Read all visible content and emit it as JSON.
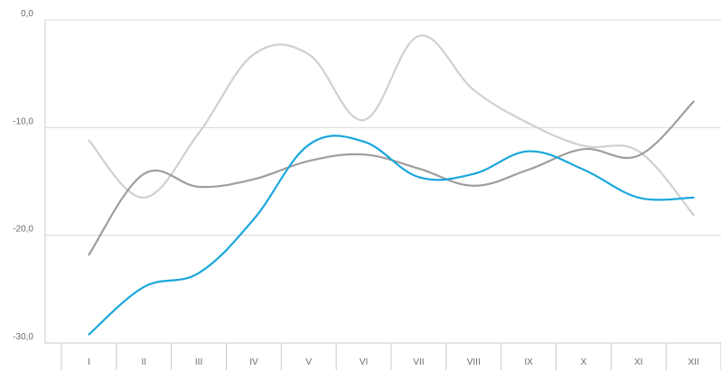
{
  "chart_data": {
    "type": "line",
    "title": "",
    "xlabel": "",
    "ylabel": "",
    "categories": [
      "I",
      "II",
      "III",
      "IV",
      "V",
      "VI",
      "VII",
      "VIII",
      "IX",
      "X",
      "XI",
      "XII"
    ],
    "yticks": [
      "0,0",
      "-10,0",
      "-20,0",
      "-30,0"
    ],
    "ylim": [
      -30,
      0
    ],
    "grid": true,
    "legend": "none",
    "series": [
      {
        "color": "#1aa7dc",
        "values": [
          -29.2,
          -24.8,
          -23.5,
          -18.5,
          -11.6,
          -11.3,
          -14.6,
          -14.3,
          -12.2,
          -13.9,
          -16.5,
          -16.5
        ]
      },
      {
        "color": "#9e9e9e",
        "values": [
          -21.8,
          -14.3,
          -15.5,
          -14.8,
          -13.1,
          -12.5,
          -13.8,
          -15.4,
          -13.9,
          -12.0,
          -12.6,
          -7.6
        ]
      },
      {
        "color": "#d0d0d0",
        "values": [
          -11.2,
          -16.5,
          -10.5,
          -3.2,
          -3.2,
          -9.3,
          -1.5,
          -6.5,
          -9.6,
          -11.7,
          -12.2,
          -18.1
        ]
      }
    ]
  }
}
